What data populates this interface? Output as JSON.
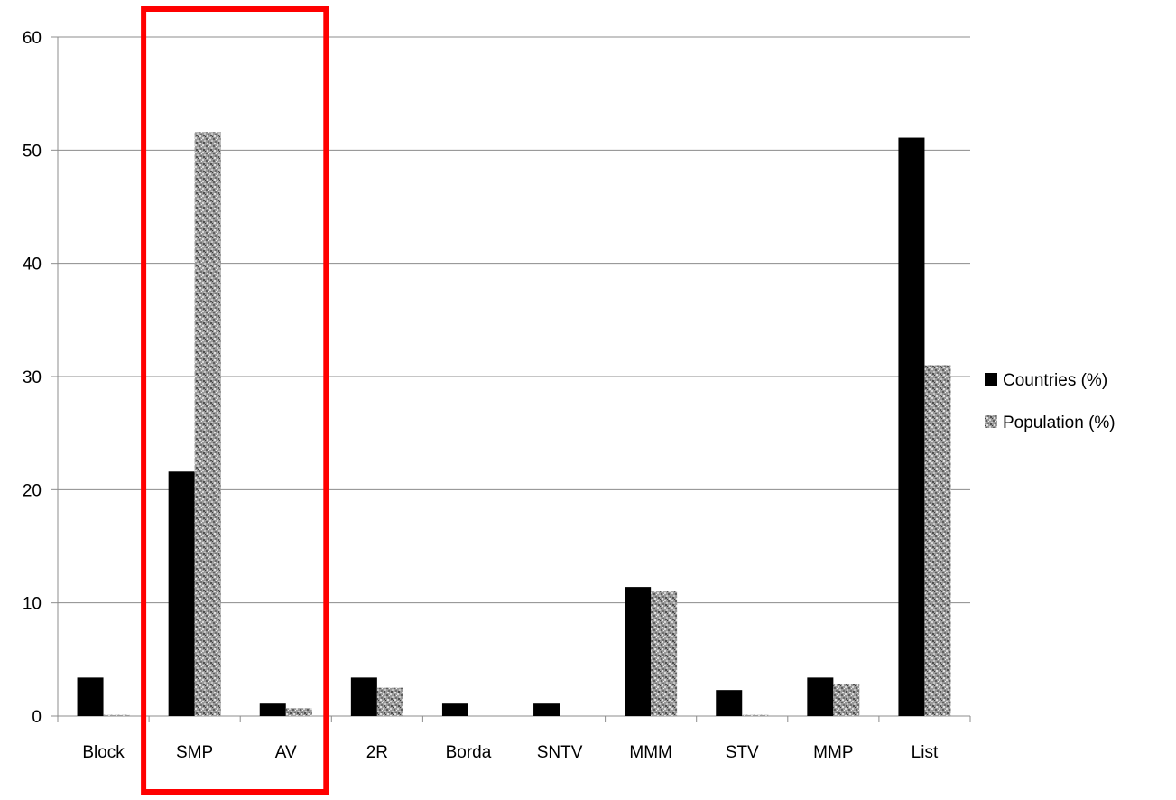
{
  "chart_data": {
    "type": "bar",
    "categories": [
      "Block",
      "SMP",
      "AV",
      "2R",
      "Borda",
      "SNTV",
      "MMM",
      "STV",
      "MMP",
      "List"
    ],
    "series": [
      {
        "name": "Countries (%)",
        "values": [
          3.4,
          21.6,
          1.1,
          3.4,
          1.1,
          1.1,
          11.4,
          2.3,
          3.4,
          51.1
        ],
        "color": "#000000"
      },
      {
        "name": "Population (%)",
        "values": [
          0.1,
          51.6,
          0.7,
          2.5,
          0,
          0,
          11.0,
          0.1,
          2.8,
          31.0
        ],
        "color": "#9a9a9a"
      }
    ],
    "y_ticks": [
      "0",
      "10",
      "20",
      "30",
      "40",
      "50",
      "60"
    ],
    "ylim": [
      0,
      60
    ],
    "grid": true,
    "legend_position": "right",
    "annotation": {
      "type": "highlight-box",
      "categories": [
        "SMP",
        "AV"
      ],
      "color": "#ff0000"
    }
  }
}
